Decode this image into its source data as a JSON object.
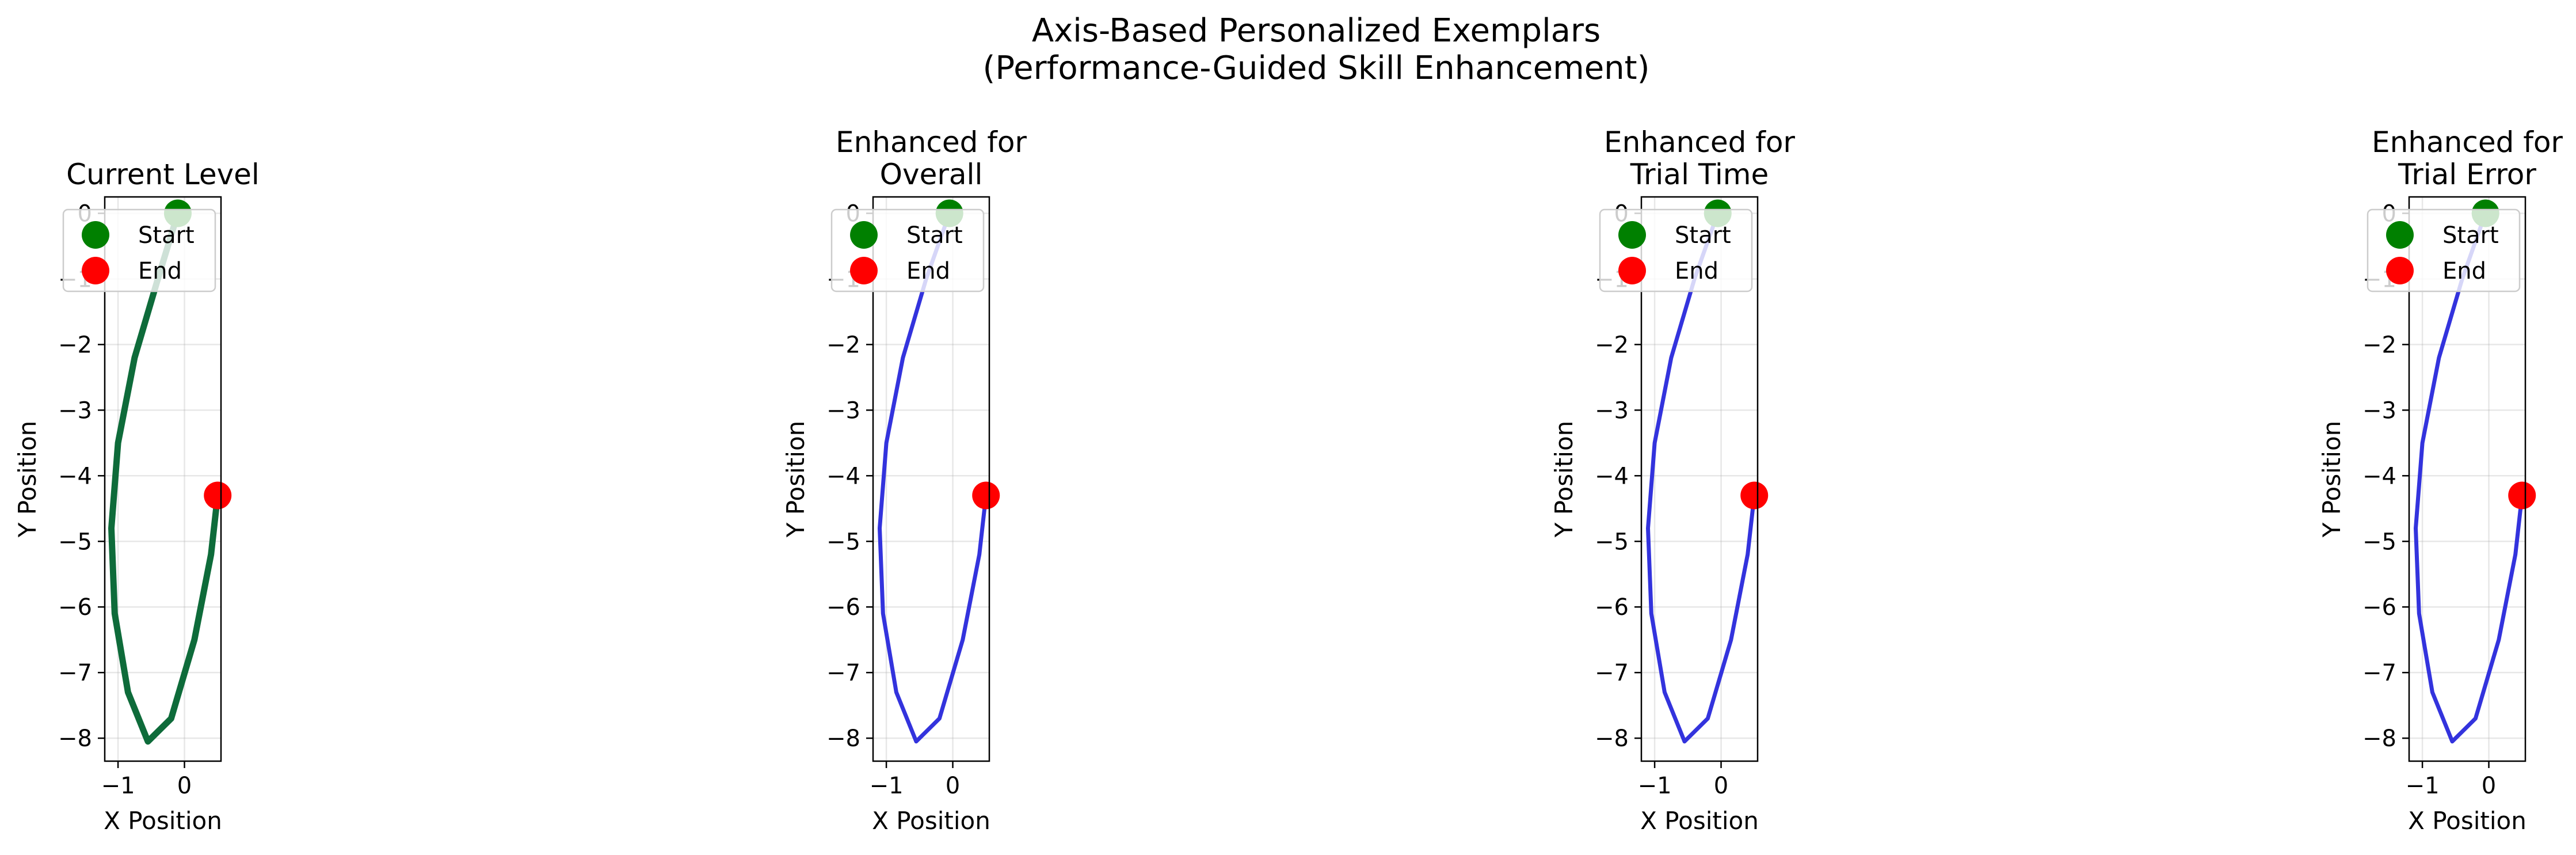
{
  "figure": {
    "title_lines": [
      "Axis-Based Personalized Exemplars",
      "(Performance-Guided Skill Enhancement)"
    ]
  },
  "legend": {
    "start_label": "Start",
    "end_label": "End",
    "start_color": "#008000",
    "end_color": "#ff0000"
  },
  "chart_data": [
    {
      "type": "line",
      "title_lines": [
        "Current Level"
      ],
      "xlabel": "X Position",
      "ylabel": "Y Position",
      "xlim": [
        -1.2,
        0.55
      ],
      "ylim": [
        -8.35,
        0.25
      ],
      "xticks": [
        -1,
        0
      ],
      "yticks": [
        0,
        -1,
        -2,
        -3,
        -4,
        -5,
        -6,
        -7,
        -8
      ],
      "grid": true,
      "legend_position": "upper-left",
      "series": [
        {
          "color": "#0e6b3a",
          "x": [
            -0.1,
            -0.4,
            -0.75,
            -1.0,
            -1.1,
            -1.05,
            -0.85,
            -0.55,
            -0.2,
            0.15,
            0.4,
            0.5
          ],
          "y": [
            0.0,
            -1.0,
            -2.2,
            -3.5,
            -4.8,
            -6.1,
            -7.3,
            -8.05,
            -7.7,
            -6.5,
            -5.2,
            -4.3
          ]
        }
      ],
      "start_point": {
        "x": -0.1,
        "y": 0.0
      },
      "end_point": {
        "x": 0.5,
        "y": -4.3
      }
    },
    {
      "type": "line",
      "title_lines": [
        "Enhanced for",
        "Overall"
      ],
      "xlabel": "X Position",
      "ylabel": "Y Position",
      "xlim": [
        -1.2,
        0.55
      ],
      "ylim": [
        -8.35,
        0.25
      ],
      "xticks": [
        -1,
        0
      ],
      "yticks": [
        0,
        -1,
        -2,
        -3,
        -4,
        -5,
        -6,
        -7,
        -8
      ],
      "grid": true,
      "legend_position": "upper-left",
      "series": [
        {
          "color": "#3333dd",
          "x": [
            -0.05,
            -0.4,
            -0.75,
            -1.0,
            -1.1,
            -1.05,
            -0.85,
            -0.55,
            -0.2,
            0.15,
            0.4,
            0.5
          ],
          "y": [
            0.0,
            -1.0,
            -2.2,
            -3.5,
            -4.8,
            -6.1,
            -7.3,
            -8.05,
            -7.7,
            -6.5,
            -5.2,
            -4.3
          ]
        }
      ],
      "start_point": {
        "x": -0.05,
        "y": 0.0
      },
      "end_point": {
        "x": 0.5,
        "y": -4.3
      }
    },
    {
      "type": "line",
      "title_lines": [
        "Enhanced for",
        "Trial Time"
      ],
      "xlabel": "X Position",
      "ylabel": "Y Position",
      "xlim": [
        -1.2,
        0.55
      ],
      "ylim": [
        -8.35,
        0.25
      ],
      "xticks": [
        -1,
        0
      ],
      "yticks": [
        0,
        -1,
        -2,
        -3,
        -4,
        -5,
        -6,
        -7,
        -8
      ],
      "grid": true,
      "legend_position": "upper-left",
      "series": [
        {
          "color": "#3333dd",
          "x": [
            -0.05,
            -0.4,
            -0.75,
            -1.0,
            -1.1,
            -1.05,
            -0.85,
            -0.55,
            -0.2,
            0.15,
            0.4,
            0.5
          ],
          "y": [
            0.0,
            -1.0,
            -2.2,
            -3.5,
            -4.8,
            -6.1,
            -7.3,
            -8.05,
            -7.7,
            -6.5,
            -5.2,
            -4.3
          ]
        }
      ],
      "start_point": {
        "x": -0.05,
        "y": 0.0
      },
      "end_point": {
        "x": 0.5,
        "y": -4.3
      }
    },
    {
      "type": "line",
      "title_lines": [
        "Enhanced for",
        "Trial Error"
      ],
      "xlabel": "X Position",
      "ylabel": "Y Position",
      "xlim": [
        -1.2,
        0.55
      ],
      "ylim": [
        -8.35,
        0.25
      ],
      "xticks": [
        -1,
        0
      ],
      "yticks": [
        0,
        -1,
        -2,
        -3,
        -4,
        -5,
        -6,
        -7,
        -8
      ],
      "grid": true,
      "legend_position": "upper-left",
      "series": [
        {
          "color": "#3333dd",
          "x": [
            -0.05,
            -0.4,
            -0.75,
            -1.0,
            -1.1,
            -1.05,
            -0.85,
            -0.55,
            -0.2,
            0.15,
            0.4,
            0.5
          ],
          "y": [
            0.0,
            -1.0,
            -2.2,
            -3.5,
            -4.8,
            -6.1,
            -7.3,
            -8.05,
            -7.7,
            -6.5,
            -5.2,
            -4.3
          ]
        }
      ],
      "start_point": {
        "x": -0.05,
        "y": 0.0
      },
      "end_point": {
        "x": 0.5,
        "y": -4.3
      }
    }
  ]
}
